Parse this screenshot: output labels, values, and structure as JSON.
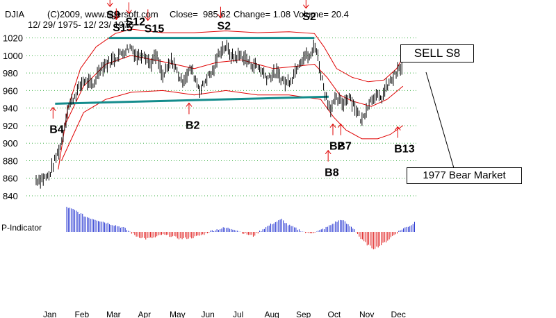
{
  "header": {
    "symbol": "DJIA",
    "copyright": "(C)2009, www.tigersoft.com",
    "close_text": "Close=  985.62",
    "change_text": "Change= 1.08",
    "volume_text": "Volume= 20.4",
    "date_range": "12/ 29/ 1975- 12/ 23/ 1976"
  },
  "callouts": {
    "sell": "SELL S8",
    "bear": "1977 Bear Market"
  },
  "indicator_label": "P-Indicator",
  "chart_data": {
    "type": "candlestick",
    "ylim": [
      840,
      1030
    ],
    "y_ticks": [
      840,
      860,
      880,
      900,
      920,
      940,
      960,
      980,
      1000,
      1020
    ],
    "months": [
      "Jan",
      "Feb",
      "Mar",
      "Apr",
      "May",
      "Jun",
      "Jul",
      "Aug",
      "Sep",
      "Oct",
      "Nov",
      "Dec"
    ],
    "grid": true,
    "close": 985.62,
    "change": 1.08,
    "volume": 20.4,
    "price_path": [
      [
        0,
        858
      ],
      [
        0.4,
        862
      ],
      [
        0.8,
        900
      ],
      [
        1.0,
        940
      ],
      [
        1.5,
        972
      ],
      [
        1.8,
        965
      ],
      [
        2.0,
        985
      ],
      [
        2.3,
        992
      ],
      [
        2.6,
        1000
      ],
      [
        3.0,
        1010
      ],
      [
        3.2,
        998
      ],
      [
        3.4,
        1004
      ],
      [
        3.6,
        990
      ],
      [
        3.8,
        1000
      ],
      [
        4.0,
        975
      ],
      [
        4.3,
        995
      ],
      [
        4.6,
        970
      ],
      [
        4.9,
        985
      ],
      [
        5.2,
        960
      ],
      [
        5.4,
        975
      ],
      [
        5.6,
        982
      ],
      [
        5.8,
        1005
      ],
      [
        6.0,
        1010
      ],
      [
        6.2,
        998
      ],
      [
        6.5,
        1000
      ],
      [
        6.8,
        990
      ],
      [
        7.0,
        988
      ],
      [
        7.3,
        975
      ],
      [
        7.6,
        980
      ],
      [
        7.9,
        968
      ],
      [
        8.1,
        975
      ],
      [
        8.3,
        992
      ],
      [
        8.5,
        1000
      ],
      [
        8.7,
        998
      ],
      [
        8.8,
        1015
      ],
      [
        8.9,
        1000
      ],
      [
        9.0,
        980
      ],
      [
        9.15,
        955
      ],
      [
        9.3,
        940
      ],
      [
        9.5,
        950
      ],
      [
        9.7,
        945
      ],
      [
        9.9,
        955
      ],
      [
        10.1,
        940
      ],
      [
        10.3,
        925
      ],
      [
        10.5,
        945
      ],
      [
        10.7,
        955
      ],
      [
        10.9,
        950
      ],
      [
        11.1,
        965
      ],
      [
        11.3,
        975
      ],
      [
        11.5,
        985
      ],
      [
        11.6,
        985
      ]
    ],
    "upper_band": [
      [
        0.7,
        870
      ],
      [
        1.0,
        940
      ],
      [
        1.4,
        985
      ],
      [
        1.9,
        1010
      ],
      [
        2.5,
        1025
      ],
      [
        3.0,
        1030
      ],
      [
        4.0,
        1026
      ],
      [
        5.0,
        1026
      ],
      [
        6.0,
        1028
      ],
      [
        7.0,
        1026
      ],
      [
        8.0,
        1027
      ],
      [
        8.8,
        1025
      ],
      [
        9.1,
        1010
      ],
      [
        9.5,
        985
      ],
      [
        10.0,
        975
      ],
      [
        10.5,
        970
      ],
      [
        11.0,
        972
      ],
      [
        11.4,
        985
      ],
      [
        11.6,
        998
      ]
    ],
    "middle_band": [
      [
        0.9,
        920
      ],
      [
        1.5,
        965
      ],
      [
        2.2,
        990
      ],
      [
        3.0,
        1000
      ],
      [
        4.0,
        993
      ],
      [
        5.0,
        985
      ],
      [
        5.7,
        992
      ],
      [
        6.5,
        995
      ],
      [
        7.5,
        985
      ],
      [
        8.3,
        988
      ],
      [
        8.8,
        990
      ],
      [
        9.2,
        975
      ],
      [
        9.6,
        955
      ],
      [
        10.0,
        948
      ],
      [
        10.6,
        942
      ],
      [
        11.1,
        950
      ],
      [
        11.6,
        965
      ]
    ],
    "lower_band": [
      [
        0.8,
        880
      ],
      [
        1.5,
        935
      ],
      [
        2.2,
        950
      ],
      [
        3.0,
        958
      ],
      [
        4.0,
        960
      ],
      [
        5.0,
        955
      ],
      [
        6.0,
        960
      ],
      [
        7.0,
        955
      ],
      [
        8.0,
        955
      ],
      [
        9.0,
        950
      ],
      [
        9.4,
        930
      ],
      [
        9.8,
        915
      ],
      [
        10.3,
        905
      ],
      [
        10.8,
        905
      ],
      [
        11.2,
        910
      ],
      [
        11.6,
        920
      ]
    ],
    "trendlines": [
      {
        "from": [
          2.3,
          1020
        ],
        "to": [
          8.8,
          1020
        ]
      },
      {
        "from": [
          0.6,
          945
        ],
        "to": [
          9.25,
          953
        ]
      }
    ],
    "signals": [
      {
        "label": "S9",
        "x": 2.4,
        "y": 1048,
        "dir": "down"
      },
      {
        "label": "S12",
        "x": 3.0,
        "y": 1040,
        "dir": "down"
      },
      {
        "label": "S15",
        "x": 2.6,
        "y": 1033,
        "dir": "down"
      },
      {
        "label": "S15",
        "x": 3.6,
        "y": 1032,
        "dir": "down"
      },
      {
        "label": "S2",
        "x": 5.9,
        "y": 1035,
        "dir": "down"
      },
      {
        "label": "S2",
        "x": 8.6,
        "y": 1046,
        "dir": "down"
      },
      {
        "label": "B4",
        "x": 0.6,
        "y": 917,
        "dir": "up"
      },
      {
        "label": "B2",
        "x": 4.9,
        "y": 922,
        "dir": "up"
      },
      {
        "label": "B2",
        "x": 9.45,
        "y": 898,
        "dir": "up"
      },
      {
        "label": "B7",
        "x": 9.7,
        "y": 898,
        "dir": "up"
      },
      {
        "label": "B13",
        "x": 11.5,
        "y": 895,
        "dir": "up"
      },
      {
        "label": "B8",
        "x": 9.3,
        "y": 868,
        "dir": "up"
      }
    ],
    "p_indicator": [
      [
        0,
        36
      ],
      [
        0.3,
        30
      ],
      [
        0.6,
        22
      ],
      [
        0.9,
        18
      ],
      [
        1.2,
        14
      ],
      [
        1.5,
        10
      ],
      [
        1.8,
        6
      ],
      [
        2.0,
        0
      ],
      [
        2.2,
        -6
      ],
      [
        2.5,
        -10
      ],
      [
        2.8,
        -8
      ],
      [
        3.0,
        -4
      ],
      [
        3.3,
        -6
      ],
      [
        3.6,
        -10
      ],
      [
        4.0,
        -8
      ],
      [
        4.3,
        -4
      ],
      [
        4.6,
        2
      ],
      [
        5.0,
        6
      ],
      [
        5.3,
        4
      ],
      [
        5.6,
        -2
      ],
      [
        5.9,
        -6
      ],
      [
        6.2,
        4
      ],
      [
        6.5,
        12
      ],
      [
        6.8,
        18
      ],
      [
        7.0,
        10
      ],
      [
        7.3,
        4
      ],
      [
        7.6,
        -2
      ],
      [
        7.9,
        0
      ],
      [
        8.2,
        6
      ],
      [
        8.5,
        14
      ],
      [
        8.7,
        18
      ],
      [
        8.9,
        10
      ],
      [
        9.1,
        4
      ],
      [
        9.3,
        -10
      ],
      [
        9.5,
        -18
      ],
      [
        9.7,
        -24
      ],
      [
        9.9,
        -20
      ],
      [
        10.1,
        -14
      ],
      [
        10.3,
        -6
      ],
      [
        10.6,
        4
      ],
      [
        10.9,
        10
      ],
      [
        11.1,
        18
      ],
      [
        11.3,
        26
      ],
      [
        11.5,
        24
      ],
      [
        11.6,
        18
      ]
    ]
  }
}
